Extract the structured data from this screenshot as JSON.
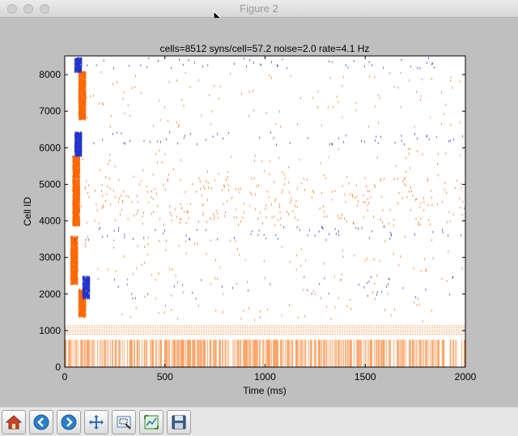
{
  "window": {
    "title": "Figure 2"
  },
  "toolbar": {
    "buttons": [
      {
        "name": "home-button",
        "icon": "home-icon"
      },
      {
        "name": "back-button",
        "icon": "back-arrow-icon"
      },
      {
        "name": "forward-button",
        "icon": "forward-arrow-icon"
      },
      {
        "name": "pan-button",
        "icon": "pan-arrows-icon"
      },
      {
        "name": "zoom-button",
        "icon": "zoom-rect-icon"
      },
      {
        "name": "subplots-button",
        "icon": "subplots-icon"
      },
      {
        "name": "save-button",
        "icon": "save-disk-icon"
      }
    ]
  },
  "chart_data": {
    "type": "scatter",
    "title": "cells=8512 syns/cell=57.2 noise=2.0 rate=4.1 Hz",
    "xlabel": "Time (ms)",
    "ylabel": "Cell ID",
    "xlim": [
      0,
      2000
    ],
    "ylim": [
      0,
      8512
    ],
    "xticks": [
      0,
      500,
      1000,
      1500,
      2000
    ],
    "yticks": [
      0,
      1000,
      2000,
      3000,
      4000,
      5000,
      6000,
      7000,
      8000
    ],
    "colors": {
      "excitatory": "#ff6600",
      "inhibitory": "#2233cc"
    },
    "populations": [
      {
        "label": "",
        "color": "excitatory",
        "y": [
          0,
          750
        ],
        "t": [
          0,
          2000
        ],
        "density": "very high",
        "style": "vertical stripes"
      },
      {
        "label": "",
        "color": "excitatory",
        "y": [
          900,
          1130
        ],
        "t": [
          0,
          2000
        ],
        "density": "sparse",
        "style": "faint rows"
      },
      {
        "label": "",
        "color": "excitatory",
        "y": [
          1270,
          2150
        ],
        "t": [
          250,
          1850
        ],
        "density": "medium",
        "onset_burst": [
          80,
          1400,
          2150
        ]
      },
      {
        "label": "",
        "color": "inhibitory",
        "y": [
          1900,
          2500
        ],
        "t": [
          110,
          2000
        ],
        "density": "medium",
        "onset_burst": [
          100,
          1900,
          2500
        ]
      },
      {
        "label": "",
        "color": "excitatory",
        "y": [
          2300,
          3600
        ],
        "t": [
          100,
          2000
        ],
        "density": "medium",
        "onset_burst": [
          40,
          2300,
          3600
        ]
      },
      {
        "label": "",
        "color": "inhibitory",
        "y": [
          3500,
          3900
        ],
        "t": [
          50,
          2000
        ],
        "density": "high"
      },
      {
        "label": "",
        "color": "excitatory",
        "y": [
          3900,
          5200
        ],
        "t": [
          80,
          2000
        ],
        "density": "very high",
        "onset_burst": [
          50,
          3900,
          5800
        ]
      },
      {
        "label": "",
        "color": "excitatory",
        "y": [
          5200,
          6000
        ],
        "t": [
          80,
          2000
        ],
        "density": "medium"
      },
      {
        "label": "",
        "color": "inhibitory",
        "y": [
          6100,
          6450
        ],
        "t": [
          60,
          2000
        ],
        "density": "high",
        "onset_burst": [
          60,
          5800,
          6450
        ]
      },
      {
        "label": "",
        "color": "excitatory",
        "y": [
          6600,
          8100
        ],
        "t": [
          80,
          2000
        ],
        "density": "medium",
        "onset_burst": [
          80,
          6800,
          8100
        ]
      },
      {
        "label": "",
        "color": "inhibitory",
        "y": [
          8200,
          8480
        ],
        "t": [
          50,
          2000
        ],
        "density": "high",
        "onset_burst": [
          60,
          8100,
          8480
        ]
      }
    ]
  }
}
